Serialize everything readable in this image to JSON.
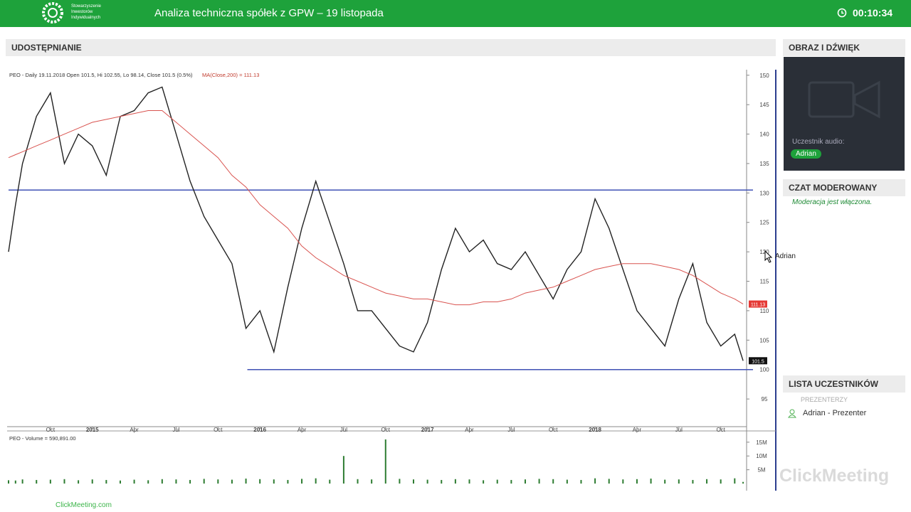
{
  "header": {
    "logo_lines": [
      "Stowarzyszenie",
      "Inwestorów",
      "Indywidualnych"
    ],
    "title": "Analiza techniczna spółek z GPW – 19 listopada",
    "timer": "00:10:34"
  },
  "sharing": {
    "title": "UDOSTĘPNIANIE"
  },
  "chart_data": {
    "type": "line",
    "title": "PEO - Daily 19.11.2018 Open 101.5, Hi 102.55, Lo 98.14, Close 101.5 (0.5%)",
    "ma_title": "MA(Close,200) = 111.13",
    "x": [
      6,
      6.5,
      7,
      8,
      9,
      10,
      11,
      12,
      13,
      14,
      15,
      16,
      17,
      18,
      19,
      20,
      21,
      22,
      23,
      24,
      25,
      26,
      27,
      28,
      29,
      30,
      31,
      32,
      33,
      34,
      35,
      36,
      37,
      38,
      39,
      40,
      41,
      42,
      43,
      44,
      45,
      46,
      47,
      48,
      49,
      50,
      51,
      52,
      53,
      54,
      55,
      56,
      57,
      58,
      58.6
    ],
    "series": [
      {
        "name": "PEO",
        "color": "#222222",
        "values": [
          120,
          128,
          135,
          143,
          147,
          135,
          140,
          138,
          133,
          143,
          144,
          147,
          148,
          140,
          132,
          126,
          122,
          118,
          107,
          110,
          103,
          114,
          124,
          132,
          125,
          118,
          110,
          110,
          107,
          104,
          103,
          108,
          117,
          124,
          120,
          122,
          118,
          117,
          120,
          116,
          112,
          117,
          120,
          129,
          124,
          117,
          110,
          107,
          104,
          112,
          118,
          108,
          104,
          106,
          101.5
        ]
      },
      {
        "name": "MA(Close,200)",
        "color": "#d9534f",
        "values": [
          136,
          136.5,
          137,
          138,
          139,
          140,
          141,
          142,
          142.5,
          143,
          143.5,
          144,
          144,
          142,
          140,
          138,
          136,
          133,
          131,
          128,
          126,
          124,
          121,
          119,
          117.5,
          116,
          115,
          114,
          113,
          112.5,
          112,
          112,
          111.5,
          111,
          111,
          111.5,
          111.5,
          112,
          113,
          113.5,
          114,
          115,
          116,
          117,
          117.5,
          118,
          118,
          118,
          117.5,
          117,
          116,
          114.5,
          113,
          112,
          111.13
        ]
      }
    ],
    "xlim": [
      6,
      58.8
    ],
    "xticks": [
      {
        "value": 9,
        "label": "Oct"
      },
      {
        "value": 12,
        "label": "2015"
      },
      {
        "value": 15,
        "label": "Apr"
      },
      {
        "value": 18,
        "label": "Jul"
      },
      {
        "value": 21,
        "label": "Oct"
      },
      {
        "value": 24,
        "label": "2016"
      },
      {
        "value": 27,
        "label": "Apr"
      },
      {
        "value": 30,
        "label": "Jul"
      },
      {
        "value": 33,
        "label": "Oct"
      },
      {
        "value": 36,
        "label": "2017"
      },
      {
        "value": 39,
        "label": "Apr"
      },
      {
        "value": 42,
        "label": "Jul"
      },
      {
        "value": 45,
        "label": "Oct"
      },
      {
        "value": 48,
        "label": "2018"
      },
      {
        "value": 51,
        "label": "Apr"
      },
      {
        "value": 54,
        "label": "Jul"
      },
      {
        "value": 57,
        "label": "Oct"
      }
    ],
    "ylim": [
      90.3,
      150.7
    ],
    "yticks": [
      95,
      100,
      105,
      110,
      115,
      120,
      125,
      130,
      135,
      140,
      145,
      150
    ],
    "hlines": [
      {
        "value": 130.5,
        "x_start": 6,
        "color": "#3f51b5"
      },
      {
        "value": 100,
        "x_start": 23.1,
        "color": "#3f51b5"
      }
    ],
    "last_close": 101.5,
    "ma_last": 111.13,
    "volume": {
      "title": "PEO - Volume = 590,891.00",
      "color": "#2e7d32",
      "values": [
        1200000,
        1100000,
        1500000,
        1300000,
        1400000,
        1600000,
        1200000,
        1500000,
        1300000,
        1100000,
        1400000,
        1200000,
        1600000,
        1500000,
        1300000,
        1700000,
        1500000,
        1400000,
        1800000,
        1600000,
        1500000,
        1300000,
        1700000,
        1900000,
        1400000,
        10000000,
        1600000,
        1500000,
        16000000,
        1700000,
        1500000,
        1400000,
        1300000,
        1600000,
        1500000,
        1200000,
        1400000,
        1300000,
        1500000,
        1700000,
        1600000,
        1400000,
        1300000,
        1900000,
        1700000,
        1500000,
        1600000,
        1800000,
        1400000,
        1500000,
        1300000,
        1600000,
        1500000,
        1900000,
        590891
      ],
      "ylim": [
        0,
        16500000
      ],
      "yticks": [
        {
          "value": 5000000,
          "label": "5M"
        },
        {
          "value": 10000000,
          "label": "10M"
        },
        {
          "value": 15000000,
          "label": "15M"
        }
      ]
    }
  },
  "cursor_label": "Adrian",
  "video": {
    "title": "OBRAZ I DŹWIĘK",
    "audio_label": "Uczestnik audio:",
    "audio_user": "Adrian"
  },
  "chat": {
    "title": "CZAT MODEROWANY",
    "status": "Moderacja jest włączona."
  },
  "participants": {
    "title": "LISTA UCZESTNIKÓW",
    "group": "PREZENTERZY",
    "members": [
      "Adrian - Prezenter"
    ]
  },
  "watermark": "ClickMeeting",
  "footer": "ClickMeeting.com"
}
